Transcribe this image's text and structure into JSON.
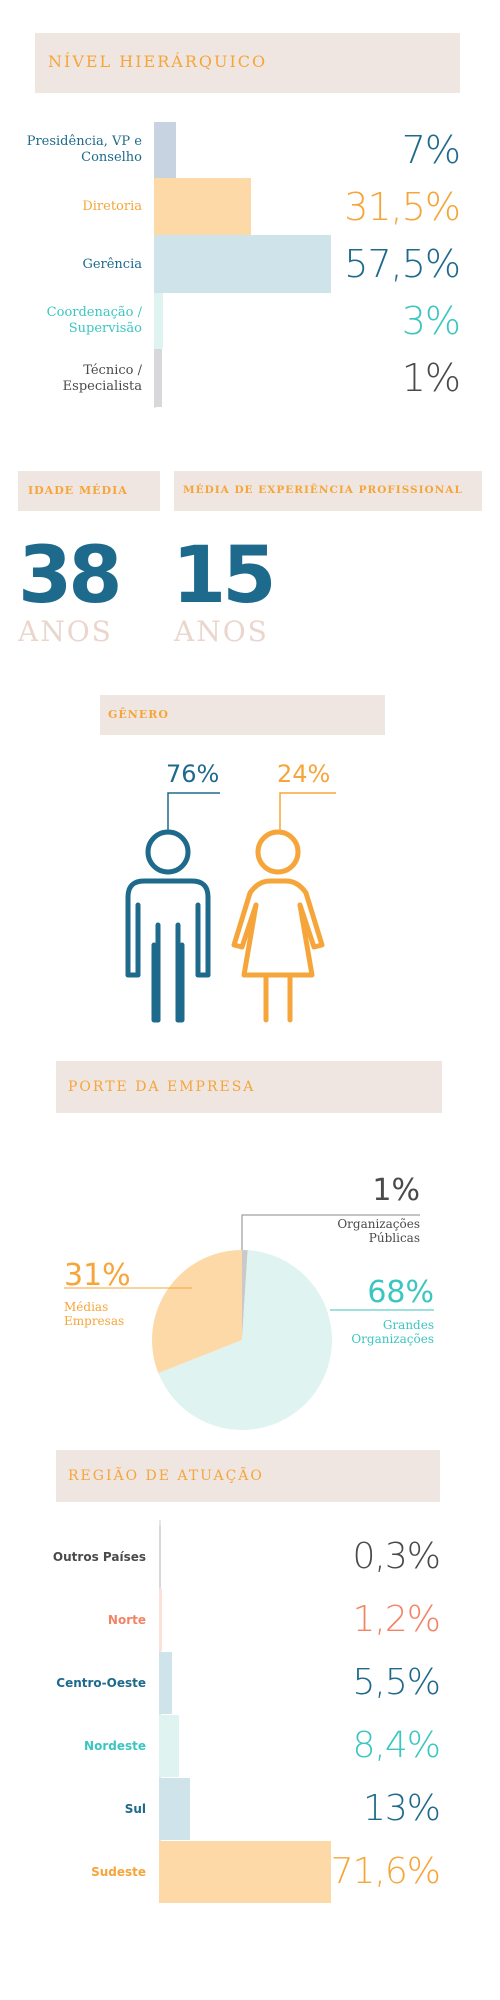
{
  "colors": {
    "box_bg": "#efe6e1",
    "orange": "#f6a53a",
    "dark_blue": "#1e6a8c",
    "teal": "#3cc6c1",
    "grey_text": "#4a4a4a",
    "coral": "#f28466",
    "bar_peach": "#fdd9a8",
    "bar_lightblue": "#cfe3eb",
    "bar_slate": "#c8d3e2",
    "bar_mint": "#dff3f1",
    "bar_grey": "#d8d8dc",
    "bar_pink": "#fde0d8",
    "pie_mint": "#dff3f1",
    "pie_peach": "#fdd9a8",
    "anos": "#ead6cd"
  },
  "nivel": {
    "title": "NÍVEL HIERÁRQUICO",
    "labels": [
      "Presidência, VP e Conselho",
      "Diretoria",
      "Gerência",
      "Coordenação / Supervisão",
      "Técnico / Especialista"
    ],
    "pct_text": [
      "7%",
      "31,5%",
      "57,5%",
      "3%",
      "1%"
    ]
  },
  "idade": {
    "title": "IDADE MÉDIA",
    "value": "38",
    "unit": "ANOS"
  },
  "experiencia": {
    "title": "MÉDIA DE EXPERIÊNCIA PROFISSIONAL",
    "value": "15",
    "unit": "ANOS"
  },
  "genero": {
    "title": "GÊNERO",
    "male_pct": "76%",
    "female_pct": "24%",
    "icons": [
      "male-person-icon",
      "female-person-icon"
    ]
  },
  "porte": {
    "title": "PORTE DA EMPRESA",
    "pct_text": [
      "1%",
      "31%",
      "68%"
    ],
    "labels": [
      "Organizações Públicas",
      "Médias Empresas",
      "Grandes Organizações"
    ]
  },
  "regiao": {
    "title": "REGIÃO DE ATUAÇÃO",
    "labels": [
      "Outros Países",
      "Norte",
      "Centro-Oeste",
      "Nordeste",
      "Sul",
      "Sudeste"
    ],
    "pct_text": [
      "0,3%",
      "1,2%",
      "5,5%",
      "8,4%",
      "13%",
      "71,6%"
    ]
  },
  "chart_data": [
    {
      "type": "bar",
      "title": "NÍVEL HIERÁRQUICO",
      "categories": [
        "Presidência, VP e Conselho",
        "Diretoria",
        "Gerência",
        "Coordenação / Supervisão",
        "Técnico / Especialista"
      ],
      "values": [
        7,
        31.5,
        57.5,
        3,
        1
      ]
    },
    {
      "type": "pie",
      "title": "PORTE DA EMPRESA",
      "categories": [
        "Organizações Públicas",
        "Médias Empresas",
        "Grandes Organizações"
      ],
      "values": [
        1,
        31,
        68
      ]
    },
    {
      "type": "bar",
      "title": "REGIÃO DE ATUAÇÃO",
      "categories": [
        "Outros Países",
        "Norte",
        "Centro-Oeste",
        "Nordeste",
        "Sul",
        "Sudeste"
      ],
      "values": [
        0.3,
        1.2,
        5.5,
        8.4,
        13,
        71.6
      ]
    }
  ]
}
